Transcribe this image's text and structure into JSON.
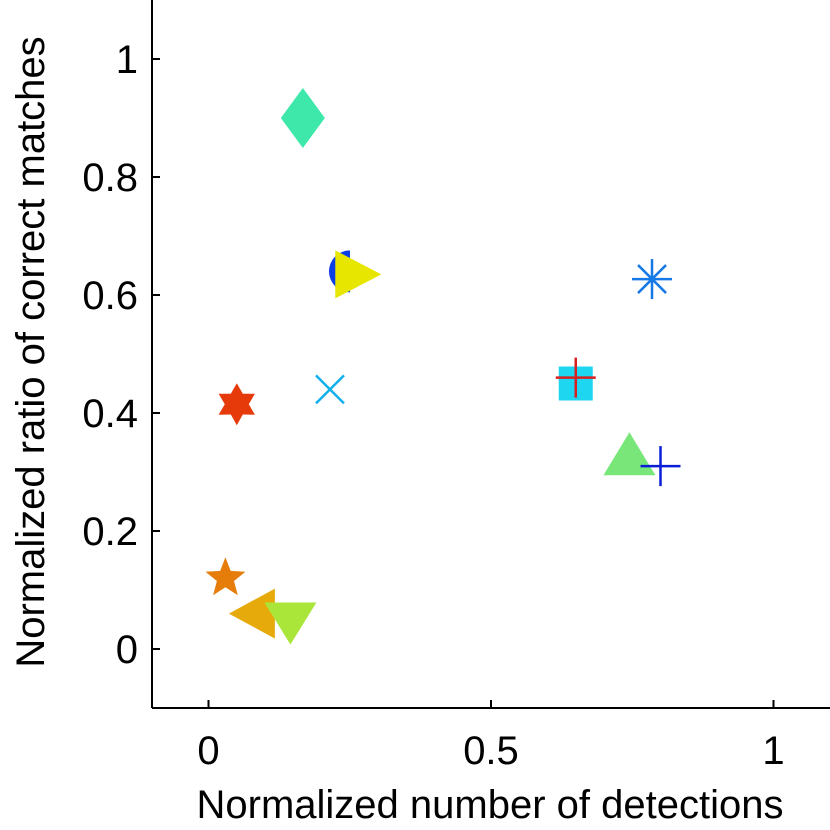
{
  "chart_data": {
    "type": "scatter",
    "title": "",
    "xlabel": "Normalized number of detections",
    "ylabel": "Normalized ratio of correct matches",
    "xlim": [
      -0.1,
      1.1
    ],
    "ylim": [
      -0.1,
      1.1
    ],
    "xticks": [
      0,
      0.5,
      1
    ],
    "xtick_labels": [
      "0",
      "0.5",
      "1"
    ],
    "yticks": [
      0,
      0.2,
      0.4,
      0.6,
      0.8,
      1
    ],
    "ytick_labels": [
      "0",
      "0.2",
      "0.4",
      "0.6",
      "0.8",
      "1"
    ],
    "grid": false,
    "points": [
      {
        "marker": "diamond",
        "color": "#3de8aa",
        "x": 0.167,
        "y": 0.9
      },
      {
        "marker": "half-circle",
        "color": "#0a3fe6",
        "x": 0.215,
        "y": 0.64
      },
      {
        "marker": "triangle-right",
        "color": "#e6e600",
        "x": 0.235,
        "y": 0.635
      },
      {
        "marker": "asterisk",
        "color": "#1478e6",
        "x": 0.785,
        "y": 0.627
      },
      {
        "marker": "square",
        "color": "#1ed6f0",
        "x": 0.65,
        "y": 0.45
      },
      {
        "marker": "plus",
        "color": "#d81f1f",
        "x": 0.65,
        "y": 0.46
      },
      {
        "marker": "x",
        "color": "#10b0ea",
        "x": 0.215,
        "y": 0.44
      },
      {
        "marker": "hexagram",
        "color": "#e63a0a",
        "x": 0.05,
        "y": 0.415
      },
      {
        "marker": "triangle-up",
        "color": "#78e678",
        "x": 0.745,
        "y": 0.325
      },
      {
        "marker": "plus",
        "color": "#0a1ed8",
        "x": 0.8,
        "y": 0.31
      },
      {
        "marker": "pentagram",
        "color": "#e67c0a",
        "x": 0.03,
        "y": 0.12
      },
      {
        "marker": "triangle-left",
        "color": "#e6aa0a",
        "x": 0.075,
        "y": 0.06
      },
      {
        "marker": "triangle-down",
        "color": "#aae63a",
        "x": 0.145,
        "y": 0.055
      }
    ]
  }
}
